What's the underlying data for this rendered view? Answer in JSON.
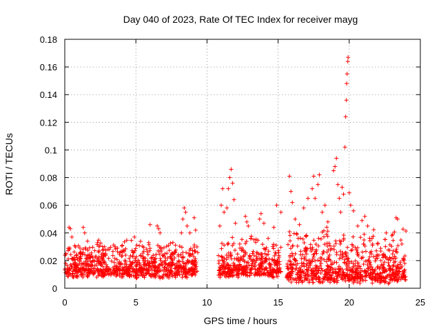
{
  "chart_data": {
    "type": "scatter",
    "title": "Day 040 of 2023, Rate Of TEC Index for receiver mayg",
    "xlabel": "GPS time / hours",
    "ylabel": "ROTI / TECUs",
    "xlim": [
      0,
      25
    ],
    "ylim": [
      0,
      0.18
    ],
    "x_ticks": [
      "0",
      "5",
      "10",
      "15",
      "20",
      "25"
    ],
    "y_ticks": [
      "0",
      "0.02",
      "0.04",
      "0.06",
      "0.08",
      "0.1",
      "0.12",
      "0.14",
      "0.16",
      "0.18"
    ],
    "grid": true,
    "marker": "plus",
    "color": "#ff0000",
    "segments": [
      {
        "x": [
          0.0,
          9.4
        ],
        "y_base": 0.01,
        "y_spread": 0.016
      },
      {
        "x": [
          10.8,
          15.2
        ],
        "y_base": 0.01,
        "y_spread": 0.018
      },
      {
        "x": [
          15.6,
          24.0
        ],
        "y_base": 0.006,
        "y_spread": 0.024
      }
    ],
    "points": [
      {
        "x": 0.3,
        "y": 0.044
      },
      {
        "x": 0.4,
        "y": 0.043
      },
      {
        "x": 0.5,
        "y": 0.037
      },
      {
        "x": 1.3,
        "y": 0.044
      },
      {
        "x": 1.4,
        "y": 0.04
      },
      {
        "x": 1.6,
        "y": 0.034
      },
      {
        "x": 2.3,
        "y": 0.033
      },
      {
        "x": 2.8,
        "y": 0.03
      },
      {
        "x": 3.7,
        "y": 0.029
      },
      {
        "x": 4.9,
        "y": 0.037
      },
      {
        "x": 5.9,
        "y": 0.033
      },
      {
        "x": 6.0,
        "y": 0.046
      },
      {
        "x": 6.5,
        "y": 0.045
      },
      {
        "x": 6.6,
        "y": 0.043
      },
      {
        "x": 6.7,
        "y": 0.04
      },
      {
        "x": 7.3,
        "y": 0.031
      },
      {
        "x": 7.6,
        "y": 0.033
      },
      {
        "x": 8.2,
        "y": 0.04
      },
      {
        "x": 8.3,
        "y": 0.05
      },
      {
        "x": 8.4,
        "y": 0.058
      },
      {
        "x": 8.5,
        "y": 0.055
      },
      {
        "x": 8.6,
        "y": 0.045
      },
      {
        "x": 8.8,
        "y": 0.04
      },
      {
        "x": 9.1,
        "y": 0.051
      },
      {
        "x": 9.2,
        "y": 0.042
      },
      {
        "x": 10.9,
        "y": 0.045
      },
      {
        "x": 11.0,
        "y": 0.06
      },
      {
        "x": 11.1,
        "y": 0.072
      },
      {
        "x": 11.2,
        "y": 0.055
      },
      {
        "x": 11.4,
        "y": 0.058
      },
      {
        "x": 11.5,
        "y": 0.072
      },
      {
        "x": 11.6,
        "y": 0.08
      },
      {
        "x": 11.7,
        "y": 0.086
      },
      {
        "x": 11.8,
        "y": 0.076
      },
      {
        "x": 11.9,
        "y": 0.064
      },
      {
        "x": 12.0,
        "y": 0.047
      },
      {
        "x": 12.3,
        "y": 0.032
      },
      {
        "x": 12.7,
        "y": 0.052
      },
      {
        "x": 12.8,
        "y": 0.048
      },
      {
        "x": 12.9,
        "y": 0.045
      },
      {
        "x": 13.3,
        "y": 0.035
      },
      {
        "x": 13.7,
        "y": 0.05
      },
      {
        "x": 13.8,
        "y": 0.054
      },
      {
        "x": 14.0,
        "y": 0.047
      },
      {
        "x": 14.3,
        "y": 0.036
      },
      {
        "x": 14.7,
        "y": 0.044
      },
      {
        "x": 14.9,
        "y": 0.06
      },
      {
        "x": 15.2,
        "y": 0.055
      },
      {
        "x": 15.8,
        "y": 0.081
      },
      {
        "x": 15.9,
        "y": 0.07
      },
      {
        "x": 16.0,
        "y": 0.062
      },
      {
        "x": 16.2,
        "y": 0.05
      },
      {
        "x": 16.5,
        "y": 0.046
      },
      {
        "x": 16.8,
        "y": 0.058
      },
      {
        "x": 17.1,
        "y": 0.065
      },
      {
        "x": 17.4,
        "y": 0.072
      },
      {
        "x": 17.5,
        "y": 0.081
      },
      {
        "x": 17.6,
        "y": 0.065
      },
      {
        "x": 17.8,
        "y": 0.075
      },
      {
        "x": 17.9,
        "y": 0.082
      },
      {
        "x": 18.1,
        "y": 0.055
      },
      {
        "x": 18.3,
        "y": 0.06
      },
      {
        "x": 18.5,
        "y": 0.048
      },
      {
        "x": 18.9,
        "y": 0.085
      },
      {
        "x": 19.0,
        "y": 0.088
      },
      {
        "x": 19.1,
        "y": 0.094
      },
      {
        "x": 19.2,
        "y": 0.075
      },
      {
        "x": 19.3,
        "y": 0.065
      },
      {
        "x": 19.4,
        "y": 0.055
      },
      {
        "x": 19.5,
        "y": 0.073
      },
      {
        "x": 19.6,
        "y": 0.068
      },
      {
        "x": 19.7,
        "y": 0.102
      },
      {
        "x": 19.75,
        "y": 0.124
      },
      {
        "x": 19.8,
        "y": 0.136
      },
      {
        "x": 19.82,
        "y": 0.148
      },
      {
        "x": 19.85,
        "y": 0.155
      },
      {
        "x": 19.9,
        "y": 0.164
      },
      {
        "x": 19.92,
        "y": 0.167
      },
      {
        "x": 20.0,
        "y": 0.069
      },
      {
        "x": 20.1,
        "y": 0.06
      },
      {
        "x": 20.3,
        "y": 0.056
      },
      {
        "x": 20.6,
        "y": 0.045
      },
      {
        "x": 20.9,
        "y": 0.049
      },
      {
        "x": 21.1,
        "y": 0.052
      },
      {
        "x": 21.3,
        "y": 0.045
      },
      {
        "x": 21.6,
        "y": 0.036
      },
      {
        "x": 22.0,
        "y": 0.032
      },
      {
        "x": 22.6,
        "y": 0.04
      },
      {
        "x": 23.0,
        "y": 0.038
      },
      {
        "x": 23.3,
        "y": 0.051
      },
      {
        "x": 23.4,
        "y": 0.05
      },
      {
        "x": 23.7,
        "y": 0.032
      }
    ]
  }
}
